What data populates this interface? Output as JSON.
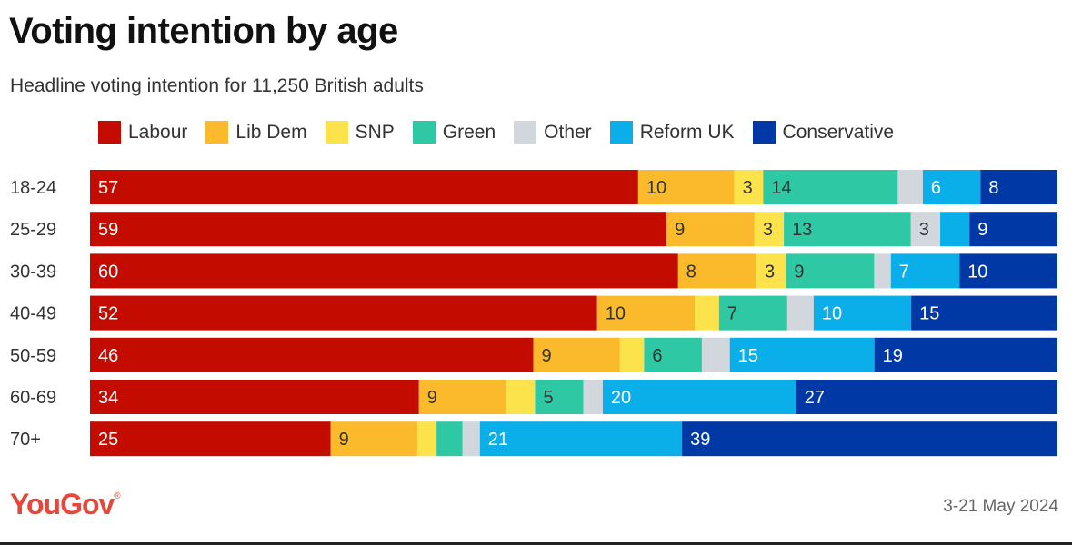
{
  "colors": {
    "Labour": "#c40b00",
    "Lib Dem": "#faba2b",
    "SNP": "#fde34b",
    "Green": "#2fc8a5",
    "Other": "#d2d7de",
    "Reform UK": "#0aafea",
    "Conservative": "#0039a6"
  },
  "label_colors": {
    "Labour": "#ffffff",
    "Lib Dem": "#333333",
    "SNP": "#333333",
    "Green": "#333333",
    "Other": "#333333",
    "Reform UK": "#ffffff",
    "Conservative": "#ffffff"
  },
  "brand": "YouGov",
  "date": "3-21 May 2024",
  "chart_data": {
    "type": "bar",
    "orientation": "horizontal",
    "stacked": true,
    "title": "Voting intention by age",
    "subtitle": "Headline voting intention for 11,250 British adults",
    "categories": [
      "18-24",
      "25-29",
      "30-39",
      "40-49",
      "50-59",
      "60-69",
      "70+"
    ],
    "series": [
      {
        "name": "Labour",
        "values": [
          57,
          59,
          60,
          52,
          46,
          34,
          25
        ]
      },
      {
        "name": "Lib Dem",
        "values": [
          10,
          9,
          8,
          10,
          9,
          9,
          9
        ]
      },
      {
        "name": "SNP",
        "values": [
          3,
          3,
          3,
          2.5,
          2.5,
          3,
          2
        ]
      },
      {
        "name": "Green",
        "values": [
          14,
          13,
          9,
          7,
          6,
          5,
          2.7
        ]
      },
      {
        "name": "Other",
        "values": [
          2.6,
          3,
          1.7,
          2.7,
          2.9,
          2,
          1.8
        ]
      },
      {
        "name": "Reform UK",
        "values": [
          6,
          3,
          7,
          10,
          15,
          20,
          21
        ]
      },
      {
        "name": "Conservative",
        "values": [
          8,
          9,
          10,
          15,
          19,
          27,
          39
        ]
      }
    ],
    "data_labels": [
      [
        "57",
        "10",
        "3",
        "14",
        "",
        "6",
        "8"
      ],
      [
        "59",
        "9",
        "3",
        "13",
        "3",
        "",
        "9"
      ],
      [
        "60",
        "8",
        "3",
        "9",
        "",
        "7",
        "10"
      ],
      [
        "52",
        "10",
        "",
        "7",
        "",
        "10",
        "15"
      ],
      [
        "46",
        "9",
        "",
        "6",
        "",
        "15",
        "19"
      ],
      [
        "34",
        "9",
        "",
        "5",
        "",
        "20",
        "27"
      ],
      [
        "25",
        "9",
        "",
        "",
        "",
        "21",
        "39"
      ]
    ]
  }
}
